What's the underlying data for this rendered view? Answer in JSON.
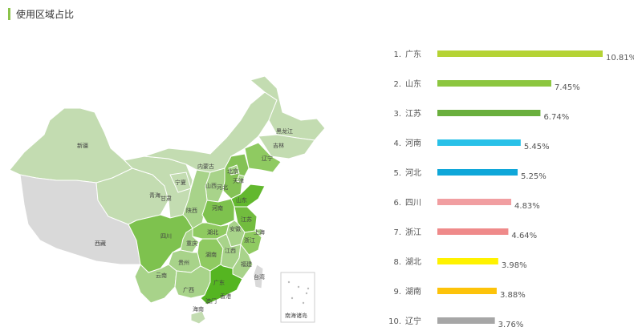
{
  "title": "使用区域占比",
  "chart_data": {
    "type": "bar",
    "categories": [
      "广东",
      "山东",
      "江苏",
      "河南",
      "河北",
      "四川",
      "浙江",
      "湖北",
      "湖南",
      "辽宁"
    ],
    "ranks": [
      "1.",
      "2.",
      "3.",
      "4.",
      "5.",
      "6.",
      "7.",
      "8.",
      "9.",
      "10."
    ],
    "values": [
      10.81,
      7.45,
      6.74,
      5.45,
      5.25,
      4.83,
      4.64,
      3.98,
      3.88,
      3.76
    ],
    "value_labels": [
      "10.81%",
      "7.45%",
      "6.74%",
      "5.45%",
      "5.25%",
      "4.83%",
      "4.64%",
      "3.98%",
      "3.88%",
      "3.76%"
    ],
    "colors": [
      "#b5d334",
      "#8cc63f",
      "#6aaf3d",
      "#29c1e8",
      "#0fa7d9",
      "#f19ea1",
      "#ef8a8a",
      "#fff200",
      "#fdc30a",
      "#a6a6a6"
    ],
    "xlim": [
      0,
      10.81
    ]
  },
  "map": {
    "province_labels": [
      "新疆",
      "西藏",
      "青海",
      "甘肃",
      "宁夏",
      "内蒙古",
      "黑龙江",
      "吉林",
      "辽宁",
      "北京",
      "天津",
      "河北",
      "山西",
      "山东",
      "陕西",
      "河南",
      "四川",
      "重庆",
      "湖北",
      "安徽",
      "江苏",
      "上海",
      "浙江",
      "湖南",
      "江西",
      "福建",
      "贵州",
      "云南",
      "广西",
      "广东",
      "台湾",
      "海南",
      "香港",
      "澳门"
    ],
    "inset_label": "南海诸岛"
  }
}
